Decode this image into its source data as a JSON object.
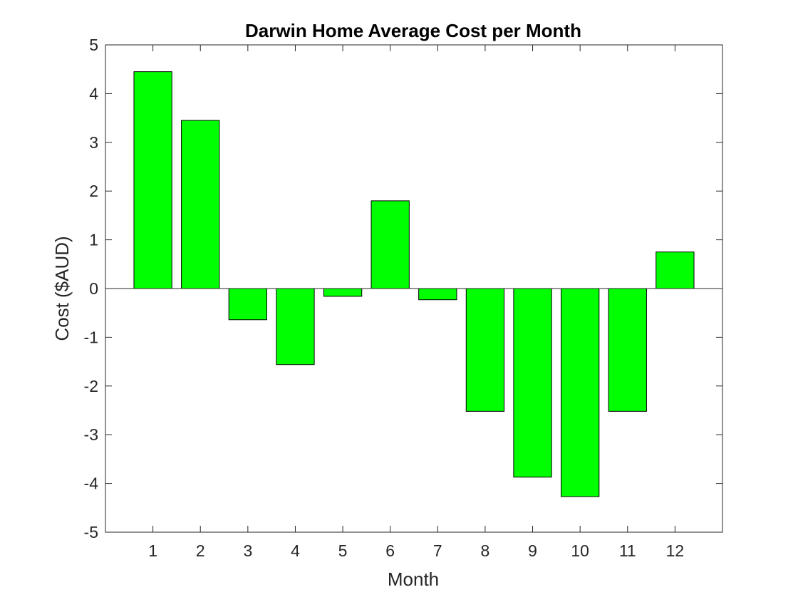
{
  "chart_data": {
    "type": "bar",
    "title": "Darwin Home Average Cost per Month",
    "xlabel": "Month",
    "ylabel": "Cost ($AUD)",
    "categories": [
      "1",
      "2",
      "3",
      "4",
      "5",
      "6",
      "7",
      "8",
      "9",
      "10",
      "11",
      "12"
    ],
    "values": [
      4.45,
      3.45,
      -0.64,
      -1.56,
      -0.16,
      1.8,
      -0.23,
      -2.52,
      -3.87,
      -4.27,
      -2.52,
      0.75
    ],
    "xlim": [
      0,
      13
    ],
    "ylim": [
      -5,
      5
    ],
    "yticks": [
      -5,
      -4,
      -3,
      -2,
      -1,
      0,
      1,
      2,
      3,
      4,
      5
    ],
    "ytick_labels": [
      "-5",
      "-4",
      "-3",
      "-2",
      "-1",
      "0",
      "1",
      "2",
      "3",
      "4",
      "5"
    ],
    "grid": false,
    "legend": "none",
    "bar_color": "#00ff00",
    "bar_edge_color": "#000000",
    "axis_color": "#262626"
  }
}
